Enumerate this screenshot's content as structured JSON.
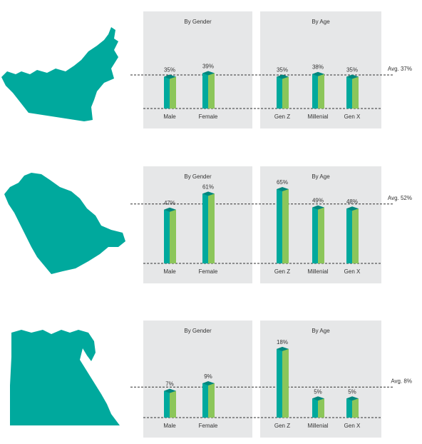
{
  "colors": {
    "map": "#00a99d",
    "bar_front": "#8cc65a",
    "bar_side": "#00a99d",
    "bar_top": "#00877e",
    "panel_bg": "#e6e7e8",
    "dash": "#333333"
  },
  "chart_data": [
    {
      "type": "bar",
      "region_map": "uae-map",
      "avg_label": "Avg. 37%",
      "avg": 37,
      "panels": [
        {
          "title": "By Gender",
          "categories": [
            "Male",
            "Female"
          ],
          "values": [
            35,
            39
          ],
          "labels": [
            "35%",
            "39%"
          ]
        },
        {
          "title": "By Age",
          "categories": [
            "Gen Z",
            "Millenial",
            "Gen X"
          ],
          "values": [
            35,
            38,
            35
          ],
          "labels": [
            "35%",
            "38%",
            "35%"
          ]
        }
      ]
    },
    {
      "type": "bar",
      "region_map": "saudi-arabia-map",
      "avg_label": "Avg. 52%",
      "avg": 52,
      "panels": [
        {
          "title": "By Gender",
          "categories": [
            "Male",
            "Female"
          ],
          "values": [
            47,
            61
          ],
          "labels": [
            "47%",
            "61%"
          ]
        },
        {
          "title": "By Age",
          "categories": [
            "Gen Z",
            "Millenial",
            "Gen X"
          ],
          "values": [
            65,
            49,
            48
          ],
          "labels": [
            "65%",
            "49%",
            "48%"
          ]
        }
      ]
    },
    {
      "type": "bar",
      "region_map": "egypt-map",
      "avg_label": "Avg. 8%",
      "avg": 8,
      "panels": [
        {
          "title": "By Gender",
          "categories": [
            "Male",
            "Female"
          ],
          "values": [
            7,
            9
          ],
          "labels": [
            "7%",
            "9%"
          ]
        },
        {
          "title": "By Age",
          "categories": [
            "Gen Z",
            "Millenial",
            "Gen X"
          ],
          "values": [
            18,
            5,
            5
          ],
          "labels": [
            "18%",
            "5%",
            "5%"
          ]
        }
      ]
    }
  ]
}
